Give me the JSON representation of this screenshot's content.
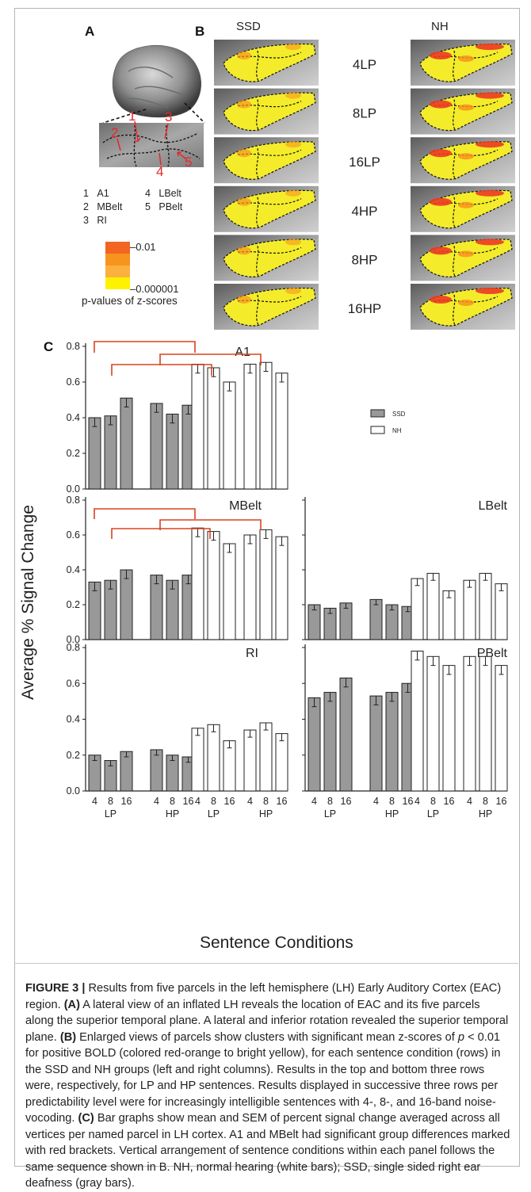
{
  "panelA": {
    "label": "A",
    "markers": [
      "1",
      "2",
      "3",
      "4",
      "5"
    ],
    "legend": [
      {
        "num": "1",
        "name": "A1"
      },
      {
        "num": "2",
        "name": "MBelt"
      },
      {
        "num": "3",
        "name": "RI"
      },
      {
        "num": "4",
        "name": "LBelt"
      },
      {
        "num": "5",
        "name": "PBelt"
      }
    ],
    "colorbar": {
      "top_label": "0.01",
      "bottom_label": "0.000001",
      "caption": "p-values of z-scores",
      "colors": [
        "#f26522",
        "#f7941d",
        "#fbb040",
        "#fff200"
      ]
    }
  },
  "panelB": {
    "label": "B",
    "col_left": "SSD",
    "col_right": "NH",
    "rows": [
      "4LP",
      "8LP",
      "16LP",
      "4HP",
      "8HP",
      "16HP"
    ]
  },
  "panelC": {
    "label": "C",
    "ylabel": "Average % Signal Change",
    "xlabel": "Sentence Conditions",
    "legend": [
      {
        "name": "SSD",
        "color": "#999999"
      },
      {
        "name": "NH",
        "color": "#ffffff"
      }
    ],
    "x_tick_numbers": [
      "4",
      "8",
      "16"
    ],
    "x_group_labels": [
      "LP",
      "HP",
      "LP",
      "HP"
    ]
  },
  "chart_data": [
    {
      "type": "bar",
      "title": "A1",
      "ylim": [
        0,
        0.8
      ],
      "yticks": [
        "0.0",
        "0.2",
        "0.4",
        "0.6",
        "0.8"
      ],
      "categories": [
        "4 LP",
        "8 LP",
        "16 LP",
        "4 HP",
        "8 HP",
        "16 HP"
      ],
      "series": [
        {
          "name": "SSD",
          "values": [
            0.4,
            0.41,
            0.51,
            0.48,
            0.42,
            0.47
          ],
          "sem": [
            0.05,
            0.05,
            0.05,
            0.05,
            0.05,
            0.05
          ]
        },
        {
          "name": "NH",
          "values": [
            0.7,
            0.68,
            0.6,
            0.7,
            0.71,
            0.65
          ],
          "sem": [
            0.05,
            0.05,
            0.05,
            0.05,
            0.05,
            0.05
          ]
        }
      ]
    },
    {
      "type": "bar",
      "title": "MBelt",
      "ylim": [
        0,
        0.8
      ],
      "yticks": [
        "0.0",
        "0.2",
        "0.4",
        "0.6",
        "0.8"
      ],
      "categories": [
        "4 LP",
        "8 LP",
        "16 LP",
        "4 HP",
        "8 HP",
        "16 HP"
      ],
      "series": [
        {
          "name": "SSD",
          "values": [
            0.33,
            0.34,
            0.4,
            0.37,
            0.34,
            0.37
          ],
          "sem": [
            0.05,
            0.05,
            0.05,
            0.05,
            0.05,
            0.05
          ]
        },
        {
          "name": "NH",
          "values": [
            0.64,
            0.62,
            0.55,
            0.6,
            0.63,
            0.59
          ],
          "sem": [
            0.05,
            0.05,
            0.05,
            0.05,
            0.05,
            0.05
          ]
        }
      ]
    },
    {
      "type": "bar",
      "title": "LBelt",
      "ylim": [
        0,
        0.8
      ],
      "yticks": [],
      "categories": [
        "4 LP",
        "8 LP",
        "16 LP",
        "4 HP",
        "8 HP",
        "16 HP"
      ],
      "series": [
        {
          "name": "SSD",
          "values": [
            0.2,
            0.18,
            0.21,
            0.23,
            0.2,
            0.19
          ],
          "sem": [
            0.03,
            0.03,
            0.03,
            0.03,
            0.03,
            0.03
          ]
        },
        {
          "name": "NH",
          "values": [
            0.35,
            0.38,
            0.28,
            0.34,
            0.38,
            0.32
          ],
          "sem": [
            0.04,
            0.04,
            0.04,
            0.04,
            0.04,
            0.04
          ]
        }
      ]
    },
    {
      "type": "bar",
      "title": "RI",
      "ylim": [
        0,
        0.8
      ],
      "yticks": [
        "0.0",
        "0.2",
        "0.4",
        "0.6",
        "0.8"
      ],
      "categories": [
        "4 LP",
        "8 LP",
        "16 LP",
        "4 HP",
        "8 HP",
        "16 HP"
      ],
      "series": [
        {
          "name": "SSD",
          "values": [
            0.2,
            0.17,
            0.22,
            0.23,
            0.2,
            0.19
          ],
          "sem": [
            0.03,
            0.03,
            0.03,
            0.03,
            0.03,
            0.03
          ]
        },
        {
          "name": "NH",
          "values": [
            0.35,
            0.37,
            0.28,
            0.34,
            0.38,
            0.32
          ],
          "sem": [
            0.04,
            0.04,
            0.04,
            0.04,
            0.04,
            0.04
          ]
        }
      ]
    },
    {
      "type": "bar",
      "title": "PBelt",
      "ylim": [
        0,
        0.8
      ],
      "yticks": [],
      "categories": [
        "4 LP",
        "8 LP",
        "16 LP",
        "4 HP",
        "8 HP",
        "16 HP"
      ],
      "series": [
        {
          "name": "SSD",
          "values": [
            0.52,
            0.55,
            0.63,
            0.53,
            0.55,
            0.6
          ],
          "sem": [
            0.05,
            0.05,
            0.05,
            0.05,
            0.05,
            0.05
          ]
        },
        {
          "name": "NH",
          "values": [
            0.78,
            0.75,
            0.7,
            0.75,
            0.75,
            0.7
          ],
          "sem": [
            0.05,
            0.05,
            0.05,
            0.05,
            0.05,
            0.05
          ]
        }
      ]
    }
  ],
  "caption": {
    "figure_label": "FIGURE 3 |",
    "seg1": " Results from five parcels in the left hemisphere (LH) Early Auditory Cortex (EAC) region. ",
    "a_tag": "(A)",
    "seg2": " A lateral view of an inflated LH reveals the location of EAC and its five parcels along the superior temporal plane. A lateral and inferior rotation revealed the superior temporal plane. ",
    "b_tag": "(B)",
    "seg3": " Enlarged views of parcels show clusters with significant mean z-scores of ",
    "p_sym": "p",
    "seg4": " < 0.01 for positive BOLD (colored red-orange to bright yellow), for each sentence condition (rows) in the SSD and NH groups (left and right columns). Results in the top and bottom three rows were, respectively, for LP and HP sentences. Results displayed in successive three rows per predictability level were for increasingly intelligible sentences with 4-, 8-, and 16-band noise-vocoding. ",
    "c_tag": "(C)",
    "seg5": " Bar graphs show mean and SEM of percent signal change averaged across all vertices per named parcel in LH cortex. A1 and MBelt had significant group differences marked with red brackets. Vertical arrangement of sentence conditions within each panel follows the same sequence shown in B. NH, normal hearing (white bars); SSD, single sided right ear deafness (gray bars)."
  }
}
